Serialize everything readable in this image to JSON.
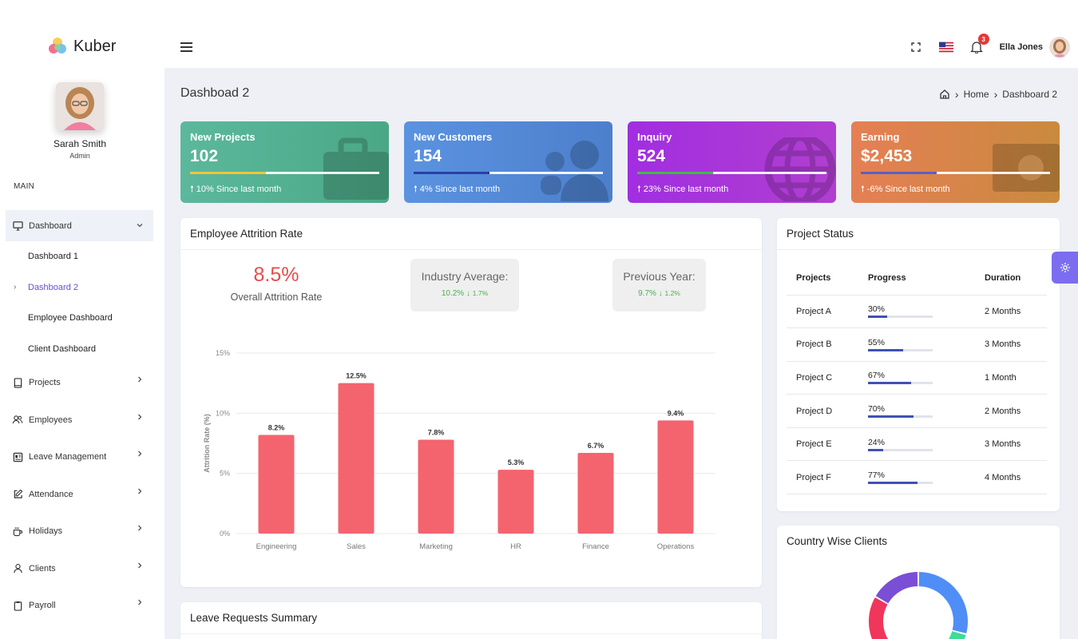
{
  "app": {
    "name": "Kuber"
  },
  "profile": {
    "name": "Sarah Smith",
    "role": "Admin"
  },
  "sidebar": {
    "section": "MAIN",
    "dashboard": {
      "label": "Dashboard",
      "icon": "monitor-icon"
    },
    "sub_items": [
      {
        "label": "Dashboard 1"
      },
      {
        "label": "Dashboard 2",
        "current": true
      },
      {
        "label": "Employee Dashboard"
      },
      {
        "label": "Client Dashboard"
      }
    ],
    "items": [
      {
        "label": "Projects",
        "icon": "book-icon"
      },
      {
        "label": "Employees",
        "icon": "users-icon"
      },
      {
        "label": "Leave Management",
        "icon": "layout-icon"
      },
      {
        "label": "Attendance",
        "icon": "edit-icon"
      },
      {
        "label": "Holidays",
        "icon": "mug-icon"
      },
      {
        "label": "Clients",
        "icon": "user-icon"
      },
      {
        "label": "Payroll",
        "icon": "clipboard-icon"
      }
    ]
  },
  "header": {
    "user_name": "Ella Jones",
    "notifications": "3"
  },
  "page": {
    "title": "Dashboad 2",
    "breadcrumb": {
      "home": "Home",
      "current": "Dashboard 2"
    }
  },
  "stats": [
    {
      "title": "New Projects",
      "value": "102",
      "footer": "10% Since last month",
      "progress": 0.4,
      "bar_color": "#f5c43a",
      "grad": [
        "#5cb89c",
        "#4aa886"
      ]
    },
    {
      "title": "New Customers",
      "value": "154",
      "footer": "4% Since last month",
      "progress": 0.4,
      "bar_color": "#2c3fa6",
      "grad": [
        "#5b93e0",
        "#4c7fcc"
      ]
    },
    {
      "title": "Inquiry",
      "value": "524",
      "footer": "23% Since last month",
      "progress": 0.4,
      "bar_color": "#43b947",
      "grad": [
        "#a12ee0",
        "#b03fd0"
      ]
    },
    {
      "title": "Earning",
      "value": "$2,453",
      "footer": "-6% Since last month",
      "progress": 0.4,
      "bar_color": "#5860c6",
      "grad": [
        "#e57f55",
        "#c98a3e"
      ]
    }
  ],
  "attrition": {
    "title": "Employee Attrition Rate",
    "overall_value": "8.5%",
    "overall_label": "Overall Attrition Rate",
    "industry": {
      "title": "Industry Average:",
      "value": "10.2%",
      "delta": "1.7%"
    },
    "previous": {
      "title": "Previous Year:",
      "value": "9.7%",
      "delta": "1.2%"
    }
  },
  "chart_data": {
    "type": "bar",
    "categories": [
      "Engineering",
      "Sales",
      "Marketing",
      "HR",
      "Finance",
      "Operations"
    ],
    "values": [
      8.2,
      12.5,
      7.8,
      5.3,
      6.7,
      9.4
    ],
    "value_labels": [
      "8.2%",
      "12.5%",
      "7.8%",
      "5.3%",
      "6.7%",
      "9.4%"
    ],
    "ylabel": "Attrition Rate (%)",
    "yticks": [
      "0%",
      "5%",
      "10%",
      "15%"
    ],
    "ylim": [
      0,
      15
    ],
    "bar_color": "#f4646e",
    "grid": true
  },
  "project_status": {
    "title": "Project Status",
    "headers": [
      "Projects",
      "Progress",
      "Duration"
    ],
    "rows": [
      {
        "name": "Project A",
        "progress": 30,
        "label": "30%",
        "duration": "2 Months"
      },
      {
        "name": "Project B",
        "progress": 55,
        "label": "55%",
        "duration": "3 Months"
      },
      {
        "name": "Project C",
        "progress": 67,
        "label": "67%",
        "duration": "1 Month"
      },
      {
        "name": "Project D",
        "progress": 70,
        "label": "70%",
        "duration": "2 Months"
      },
      {
        "name": "Project E",
        "progress": 24,
        "label": "24%",
        "duration": "3 Months"
      },
      {
        "name": "Project F",
        "progress": 77,
        "label": "77%",
        "duration": "4 Months"
      }
    ]
  },
  "country_clients": {
    "title": "Country Wise Clients",
    "segment_colors": [
      "#4f8ef7",
      "#3ddc97",
      "#f0365a",
      "#7a4fd6"
    ]
  },
  "leave_summary": {
    "title": "Leave Requests Summary"
  }
}
